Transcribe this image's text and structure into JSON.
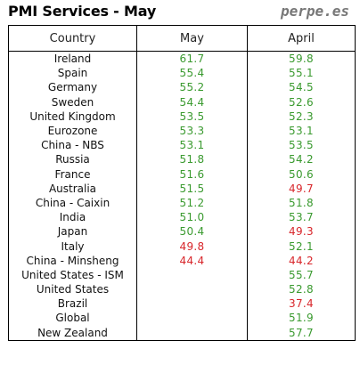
{
  "title": "PMI Services - May",
  "brand": "perpe.es",
  "colors": {
    "above_50": "#3a9a2f",
    "below_50": "#d8262b"
  },
  "chart_data": {
    "type": "table",
    "columns": [
      "Country",
      "May",
      "April"
    ],
    "rows": [
      [
        "Ireland",
        "61.7",
        "59.8"
      ],
      [
        "Spain",
        "55.4",
        "55.1"
      ],
      [
        "Germany",
        "55.2",
        "54.5"
      ],
      [
        "Sweden",
        "54.4",
        "52.6"
      ],
      [
        "United Kingdom",
        "53.5",
        "52.3"
      ],
      [
        "Eurozone",
        "53.3",
        "53.1"
      ],
      [
        "China - NBS",
        "53.1",
        "53.5"
      ],
      [
        "Russia",
        "51.8",
        "54.2"
      ],
      [
        "France",
        "51.6",
        "50.6"
      ],
      [
        "Australia",
        "51.5",
        "49.7"
      ],
      [
        "China - Caixin",
        "51.2",
        "51.8"
      ],
      [
        "India",
        "51.0",
        "53.7"
      ],
      [
        "Japan",
        "50.4",
        "49.3"
      ],
      [
        "Italy",
        "49.8",
        "52.1"
      ],
      [
        "China - Minsheng",
        "44.4",
        "44.2"
      ],
      [
        "United States - ISM",
        "",
        "55.7"
      ],
      [
        "United States",
        "",
        "52.8"
      ],
      [
        "Brazil",
        "",
        "37.4"
      ],
      [
        "Global",
        "",
        "51.9"
      ],
      [
        "New Zealand",
        "",
        "57.7"
      ]
    ]
  }
}
